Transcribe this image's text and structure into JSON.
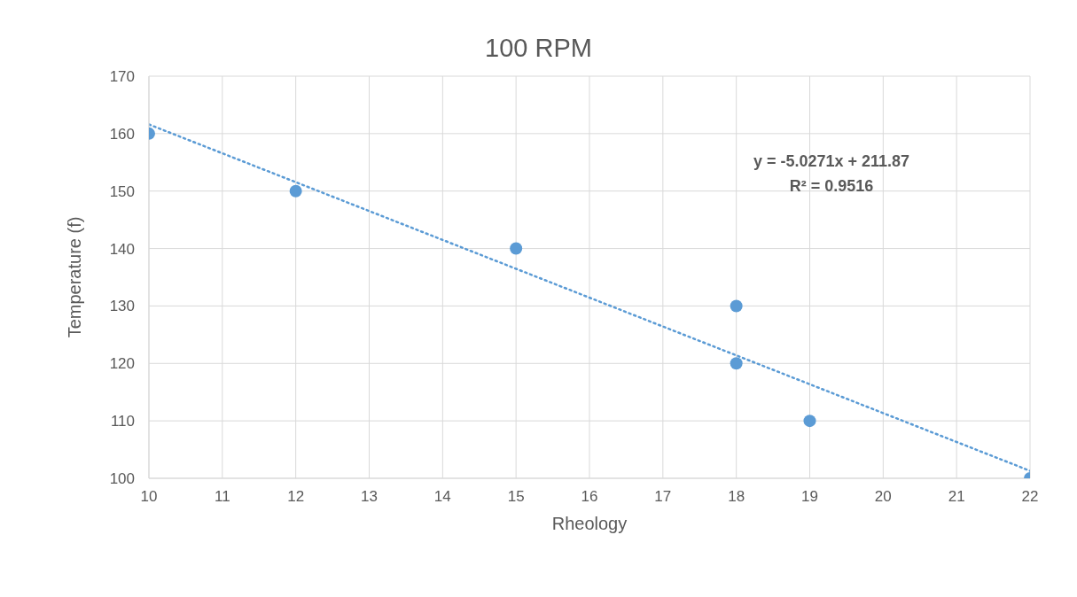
{
  "chart_data": {
    "type": "scatter",
    "title": "100 RPM",
    "xlabel": "Rheology",
    "ylabel": "Temperature (f)",
    "x": [
      10,
      12,
      15,
      18,
      18,
      19,
      22
    ],
    "marker": "circle",
    "series": [
      {
        "color": "#5b9bd5",
        "values": [
          160,
          150,
          140,
          130,
          120,
          110,
          100
        ]
      },
      {
        "type": "line",
        "x": [
          10,
          22
        ],
        "values": [
          161.6,
          101.3
        ],
        "color": "#5b9bd5",
        "line_style": "dotted",
        "marker": "none"
      }
    ],
    "xlim": [
      10,
      22
    ],
    "xticks": [
      10,
      11,
      12,
      13,
      14,
      15,
      16,
      17,
      18,
      19,
      20,
      21,
      22
    ],
    "ylim": [
      100,
      170
    ],
    "yticks": [
      100,
      110,
      120,
      130,
      140,
      150,
      160,
      170
    ],
    "grid": true,
    "annotations": [
      "y = -5.0271x + 211.87",
      "R² = 0.9516"
    ]
  }
}
